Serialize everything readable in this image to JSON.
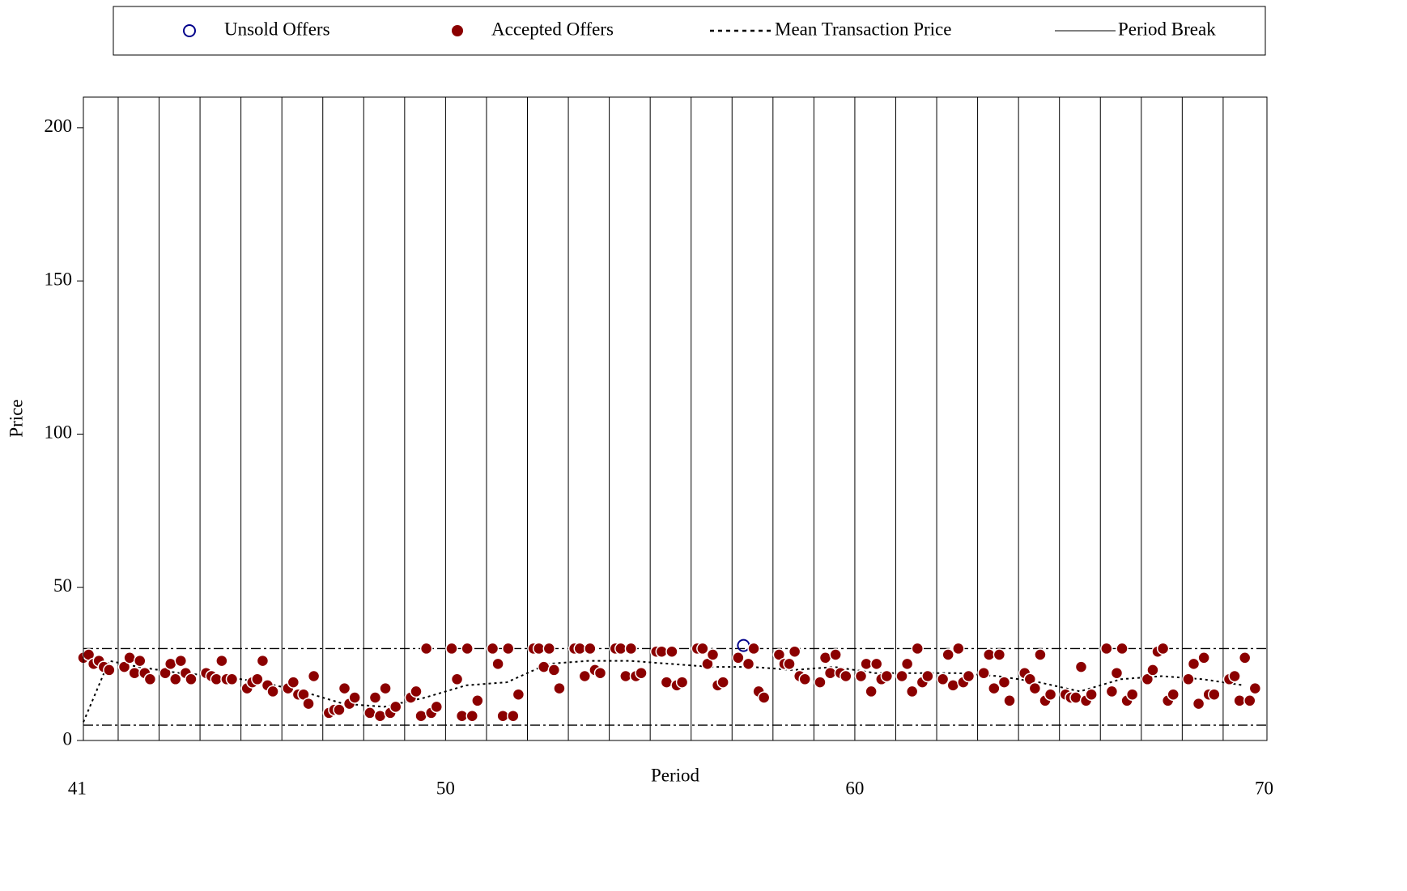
{
  "chart_data": {
    "type": "scatter",
    "xlabel": "Period",
    "ylabel": "Price",
    "xlim": [
      41.15,
      70.07
    ],
    "ylim": [
      0,
      210
    ],
    "xticks": [
      41,
      50,
      60,
      70
    ],
    "yticks": [
      0,
      50,
      100,
      150,
      200
    ],
    "reference_lines": [
      30,
      5
    ],
    "series": [
      {
        "name": "Unsold Offers",
        "kind": "points",
        "marker": "open-circle",
        "color": "#00008b",
        "x": [
          57.28
        ],
        "values": [
          31
        ]
      },
      {
        "name": "Accepted Offers",
        "kind": "points",
        "marker": "filled-circle",
        "color": "#8b0000",
        "x": [
          41.15,
          41.28,
          41.4,
          41.53,
          41.65,
          41.78,
          42.15,
          42.28,
          42.4,
          42.53,
          42.65,
          42.78,
          43.15,
          43.28,
          43.4,
          43.53,
          43.65,
          43.78,
          44.15,
          44.28,
          44.4,
          44.53,
          44.65,
          44.78,
          45.15,
          45.28,
          45.4,
          45.53,
          45.65,
          45.78,
          46.15,
          46.28,
          46.4,
          46.53,
          46.65,
          46.78,
          47.15,
          47.28,
          47.4,
          47.53,
          47.65,
          47.78,
          48.15,
          48.28,
          48.4,
          48.53,
          48.65,
          48.78,
          49.15,
          49.28,
          49.4,
          49.53,
          49.65,
          49.78,
          50.15,
          50.28,
          50.4,
          50.53,
          50.65,
          50.78,
          51.15,
          51.28,
          51.4,
          51.53,
          51.65,
          51.78,
          52.15,
          52.28,
          52.4,
          52.53,
          52.65,
          52.78,
          53.15,
          53.28,
          53.4,
          53.53,
          53.65,
          53.78,
          54.15,
          54.28,
          54.4,
          54.53,
          54.65,
          54.78,
          55.15,
          55.28,
          55.4,
          55.53,
          55.65,
          55.78,
          56.15,
          56.28,
          56.4,
          56.53,
          56.65,
          56.78,
          57.15,
          57.4,
          57.53,
          57.65,
          57.78,
          58.15,
          58.28,
          58.4,
          58.53,
          58.65,
          58.78,
          59.15,
          59.28,
          59.4,
          59.53,
          59.65,
          59.78,
          60.15,
          60.28,
          60.4,
          60.53,
          60.65,
          60.78,
          61.15,
          61.28,
          61.4,
          61.53,
          61.65,
          61.78,
          62.15,
          62.28,
          62.4,
          62.53,
          62.65,
          62.78,
          63.15,
          63.28,
          63.4,
          63.53,
          63.65,
          63.78,
          64.15,
          64.28,
          64.4,
          64.53,
          64.65,
          64.78,
          65.15,
          65.28,
          65.4,
          65.53,
          65.65,
          65.78,
          66.15,
          66.28,
          66.4,
          66.53,
          66.65,
          66.78,
          67.15,
          67.28,
          67.4,
          67.53,
          67.65,
          67.78,
          68.15,
          68.28,
          68.4,
          68.53,
          68.65,
          68.78,
          69.15,
          69.28,
          69.4,
          69.53,
          69.65,
          69.78
        ],
        "values": [
          27,
          28,
          25,
          26,
          24,
          23,
          24,
          27,
          22,
          26,
          22,
          20,
          22,
          25,
          20,
          26,
          22,
          20,
          22,
          21,
          20,
          26,
          20,
          20,
          17,
          19,
          20,
          26,
          18,
          16,
          17,
          19,
          15,
          15,
          12,
          21,
          9,
          10,
          10,
          17,
          12,
          14,
          9,
          14,
          8,
          17,
          9,
          11,
          14,
          16,
          8,
          30,
          9,
          11,
          30,
          20,
          8,
          30,
          8,
          13,
          30,
          25,
          8,
          30,
          8,
          15,
          30,
          30,
          24,
          30,
          23,
          17,
          30,
          30,
          21,
          30,
          23,
          22,
          30,
          30,
          21,
          30,
          21,
          22,
          29,
          29,
          19,
          29,
          18,
          19,
          30,
          30,
          25,
          28,
          18,
          19,
          27,
          25,
          30,
          16,
          14,
          28,
          25,
          25,
          29,
          21,
          20,
          19,
          27,
          22,
          28,
          22,
          21,
          21,
          25,
          16,
          25,
          20,
          21,
          21,
          25,
          16,
          30,
          19,
          21,
          20,
          28,
          18,
          30,
          19,
          21,
          22,
          28,
          17,
          28,
          19,
          13,
          22,
          20,
          17,
          28,
          13,
          15,
          15,
          14,
          14,
          24,
          13,
          15,
          30,
          16,
          22,
          30,
          13,
          15,
          20,
          23,
          29,
          30,
          13,
          15,
          20,
          25,
          12,
          27,
          15,
          15,
          20,
          21,
          13,
          27,
          13,
          17
        ]
      },
      {
        "name": "Mean Transaction Price",
        "kind": "line",
        "marker": "dotted-line",
        "color": "#000000",
        "x": [
          41.15,
          41.78,
          42.5,
          43.5,
          44.5,
          45.5,
          46.5,
          47.5,
          48.5,
          49.5,
          50.5,
          51.5,
          52.5,
          53.5,
          54.5,
          55.5,
          56.5,
          57.5,
          58.5,
          59.5,
          60.5,
          61.5,
          62.5,
          63.5,
          64.5,
          65.5,
          66.5,
          67.5,
          68.5,
          69.5
        ],
        "values": [
          6,
          26,
          24,
          22,
          21,
          19,
          16,
          12,
          11,
          14,
          18,
          19,
          25,
          26,
          26,
          25,
          24,
          24,
          23,
          24,
          22,
          22,
          22,
          21,
          19,
          16,
          20,
          21,
          20,
          18
        ]
      },
      {
        "name": "Period Break",
        "kind": "vlines",
        "marker": "solid-line",
        "color": "#000000",
        "x": [
          42,
          43,
          44,
          45,
          46,
          47,
          48,
          49,
          50,
          51,
          52,
          53,
          54,
          55,
          56,
          57,
          58,
          59,
          60,
          61,
          62,
          63,
          64,
          65,
          66,
          67,
          68,
          69
        ]
      }
    ]
  }
}
